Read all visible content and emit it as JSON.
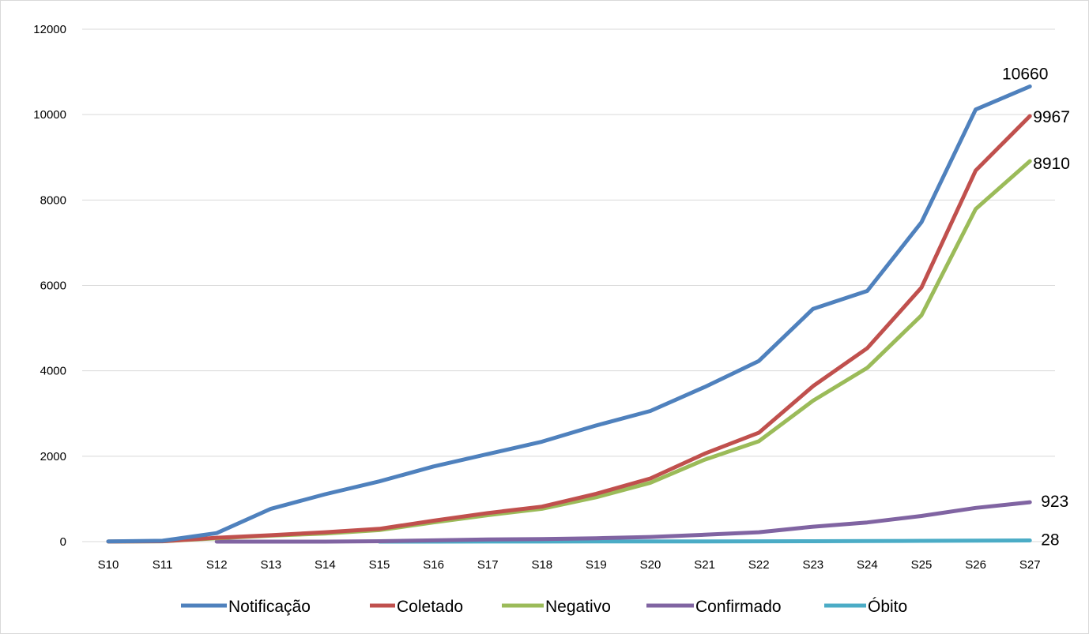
{
  "chart_data": {
    "type": "line",
    "categories": [
      "S10",
      "S11",
      "S12",
      "S13",
      "S14",
      "S15",
      "S16",
      "S17",
      "S18",
      "S19",
      "S20",
      "S21",
      "S22",
      "S23",
      "S24",
      "S25",
      "S26",
      "S27"
    ],
    "ylim": [
      0,
      12000
    ],
    "yticks": [
      0,
      2000,
      4000,
      6000,
      8000,
      10000,
      12000
    ],
    "grid": true,
    "legend_position": "bottom",
    "series": [
      {
        "name": "Notificação",
        "color": "#4F81BD",
        "values": [
          5,
          20,
          200,
          770,
          1110,
          1410,
          1760,
          2050,
          2340,
          2720,
          3060,
          3620,
          4230,
          5450,
          5870,
          7480,
          10120,
          10660
        ],
        "end_label": "10660"
      },
      {
        "name": "Coletado",
        "color": "#C0504D",
        "values": [
          2,
          10,
          90,
          150,
          220,
          300,
          490,
          670,
          820,
          1120,
          1480,
          2060,
          2550,
          3640,
          4530,
          5950,
          8690,
          9967
        ],
        "end_label": "9967"
      },
      {
        "name": "Negativo",
        "color": "#9BBB59",
        "values": [
          2,
          8,
          80,
          140,
          190,
          270,
          450,
          620,
          770,
          1040,
          1380,
          1920,
          2350,
          3300,
          4070,
          5300,
          7790,
          8910
        ],
        "end_label": "8910"
      },
      {
        "name": "Confirmado",
        "color": "#8064A2",
        "values": [
          null,
          null,
          0,
          0,
          0,
          10,
          30,
          50,
          60,
          80,
          110,
          160,
          220,
          350,
          450,
          600,
          790,
          923
        ],
        "end_label": "923"
      },
      {
        "name": "Óbito",
        "color": "#4BACC6",
        "values": [
          null,
          null,
          null,
          null,
          null,
          0,
          0,
          1,
          2,
          3,
          4,
          6,
          8,
          10,
          14,
          18,
          24,
          28
        ],
        "end_label": "28"
      }
    ]
  }
}
